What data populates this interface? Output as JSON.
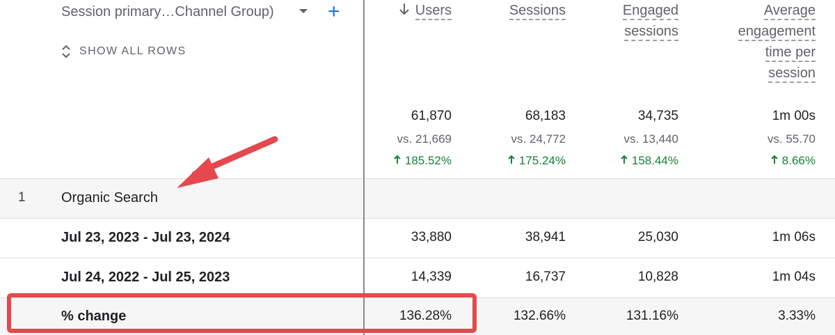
{
  "dimension": {
    "label": "Session primary…Channel Group)",
    "add_symbol": "+"
  },
  "show_all_rows": "SHOW ALL ROWS",
  "columns": [
    {
      "key": "users",
      "header": [
        "Users"
      ],
      "sorted": true
    },
    {
      "key": "sessions",
      "header": [
        "Sessions"
      ]
    },
    {
      "key": "engaged",
      "header": [
        "Engaged",
        "sessions"
      ]
    },
    {
      "key": "avg",
      "header": [
        "Average",
        "engagement",
        "time per",
        "session"
      ]
    }
  ],
  "totals": {
    "users": {
      "value": "61,870",
      "vs": "vs. 21,669",
      "change": "185.52%"
    },
    "sessions": {
      "value": "68,183",
      "vs": "vs. 24,772",
      "change": "175.24%"
    },
    "engaged": {
      "value": "34,735",
      "vs": "vs. 13,440",
      "change": "158.44%"
    },
    "avg": {
      "value": "1m 00s",
      "vs": "vs. 55.70",
      "change": "8.66%"
    }
  },
  "group": {
    "index": "1",
    "name": "Organic Search"
  },
  "rows": [
    {
      "label": "Jul 23, 2023 - Jul 23, 2024",
      "users": "33,880",
      "sessions": "38,941",
      "engaged": "25,030",
      "avg": "1m 06s"
    },
    {
      "label": "Jul 24, 2022 - Jul 25, 2023",
      "users": "14,339",
      "sessions": "16,737",
      "engaged": "10,828",
      "avg": "1m 04s"
    },
    {
      "label": "% change",
      "users": "136.28%",
      "sessions": "132.66%",
      "engaged": "131.16%",
      "avg": "3.33%"
    }
  ],
  "annotation_color": "#e5484d"
}
